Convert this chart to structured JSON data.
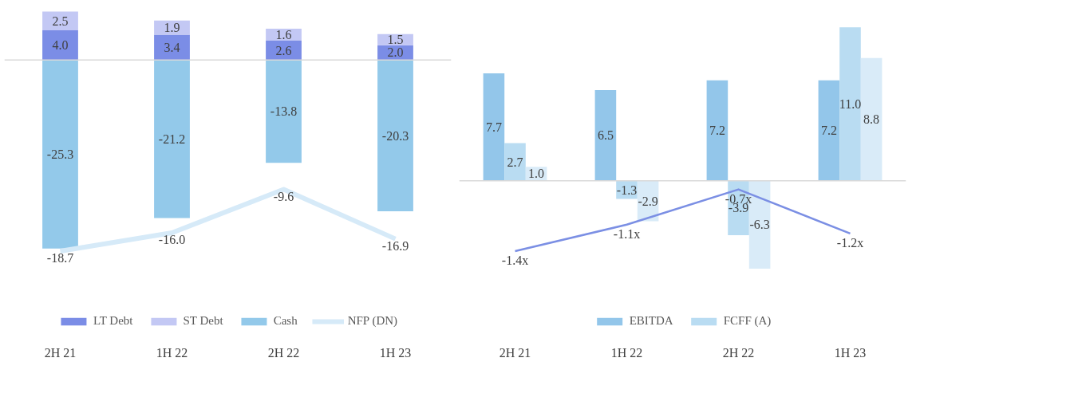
{
  "chart_data": [
    {
      "type": "bar",
      "stacked": true,
      "categories": [
        "2H 21",
        "1H 22",
        "2H 22",
        "1H 23"
      ],
      "tick_labels": "x",
      "legend": "bottom",
      "grid": false,
      "ref_lines": [
        {
          "axis": "y",
          "value": 0,
          "color": "#d9d9d9"
        }
      ],
      "series": [
        {
          "name": "LT Debt",
          "color": "#7b8de6",
          "values": [
            4.0,
            3.4,
            2.6,
            2.0
          ],
          "value_labels": [
            "4.0",
            "3.4",
            "2.6",
            "2.0"
          ]
        },
        {
          "name": "ST Debt",
          "color": "#c3c8f4",
          "values": [
            2.5,
            1.9,
            1.6,
            1.5
          ],
          "value_labels": [
            "2.5",
            "1.9",
            "1.6",
            "1.5"
          ]
        },
        {
          "name": "Cash",
          "color": "#93c9ea",
          "values": [
            -25.3,
            -21.2,
            -13.8,
            -20.3
          ],
          "value_labels": [
            "-25.3",
            "-21.2",
            "-13.8",
            "-20.3"
          ]
        },
        {
          "name": "NFP (DN)",
          "type": "line",
          "axis": "y2",
          "color": "#d6eaf8",
          "values": [
            -18.7,
            -16.0,
            -9.6,
            -16.9
          ],
          "value_labels": [
            "-18.7",
            "-16.0",
            "-9.6",
            "-16.9"
          ]
        }
      ]
    },
    {
      "type": "bar",
      "categories": [
        "2H 21",
        "1H 22",
        "2H 22",
        "1H 23"
      ],
      "tick_labels": "x",
      "legend": "bottom",
      "grid": false,
      "ref_lines": [
        {
          "axis": "y",
          "value": 0,
          "color": "#d9d9d9"
        }
      ],
      "series": [
        {
          "name": "EBITDA",
          "color": "#93c6ea",
          "values": [
            7.7,
            6.5,
            7.2,
            7.2
          ],
          "value_labels": [
            "7.7",
            "6.5",
            "7.2",
            "7.2"
          ]
        },
        {
          "name": "FCFF (A)",
          "color": "#b9dcf2",
          "values": [
            2.7,
            -1.3,
            -3.9,
            11.0
          ],
          "value_labels": [
            "2.7",
            "-1.3",
            "-3.9",
            "11.0"
          ]
        },
        {
          "color": "#d9ebf8",
          "values": [
            1.0,
            -2.9,
            -6.3,
            8.8
          ],
          "value_labels": [
            "1.0",
            "-2.9",
            "-6.3",
            "8.8"
          ]
        },
        {
          "type": "line",
          "axis": "y2",
          "color": "#7b8fe4",
          "values": [
            -1.4,
            -1.1,
            -0.7,
            -1.2
          ],
          "value_labels": [
            "-1.4x",
            "-1.1x",
            "-0.7x",
            "-1.2x"
          ]
        }
      ]
    }
  ]
}
